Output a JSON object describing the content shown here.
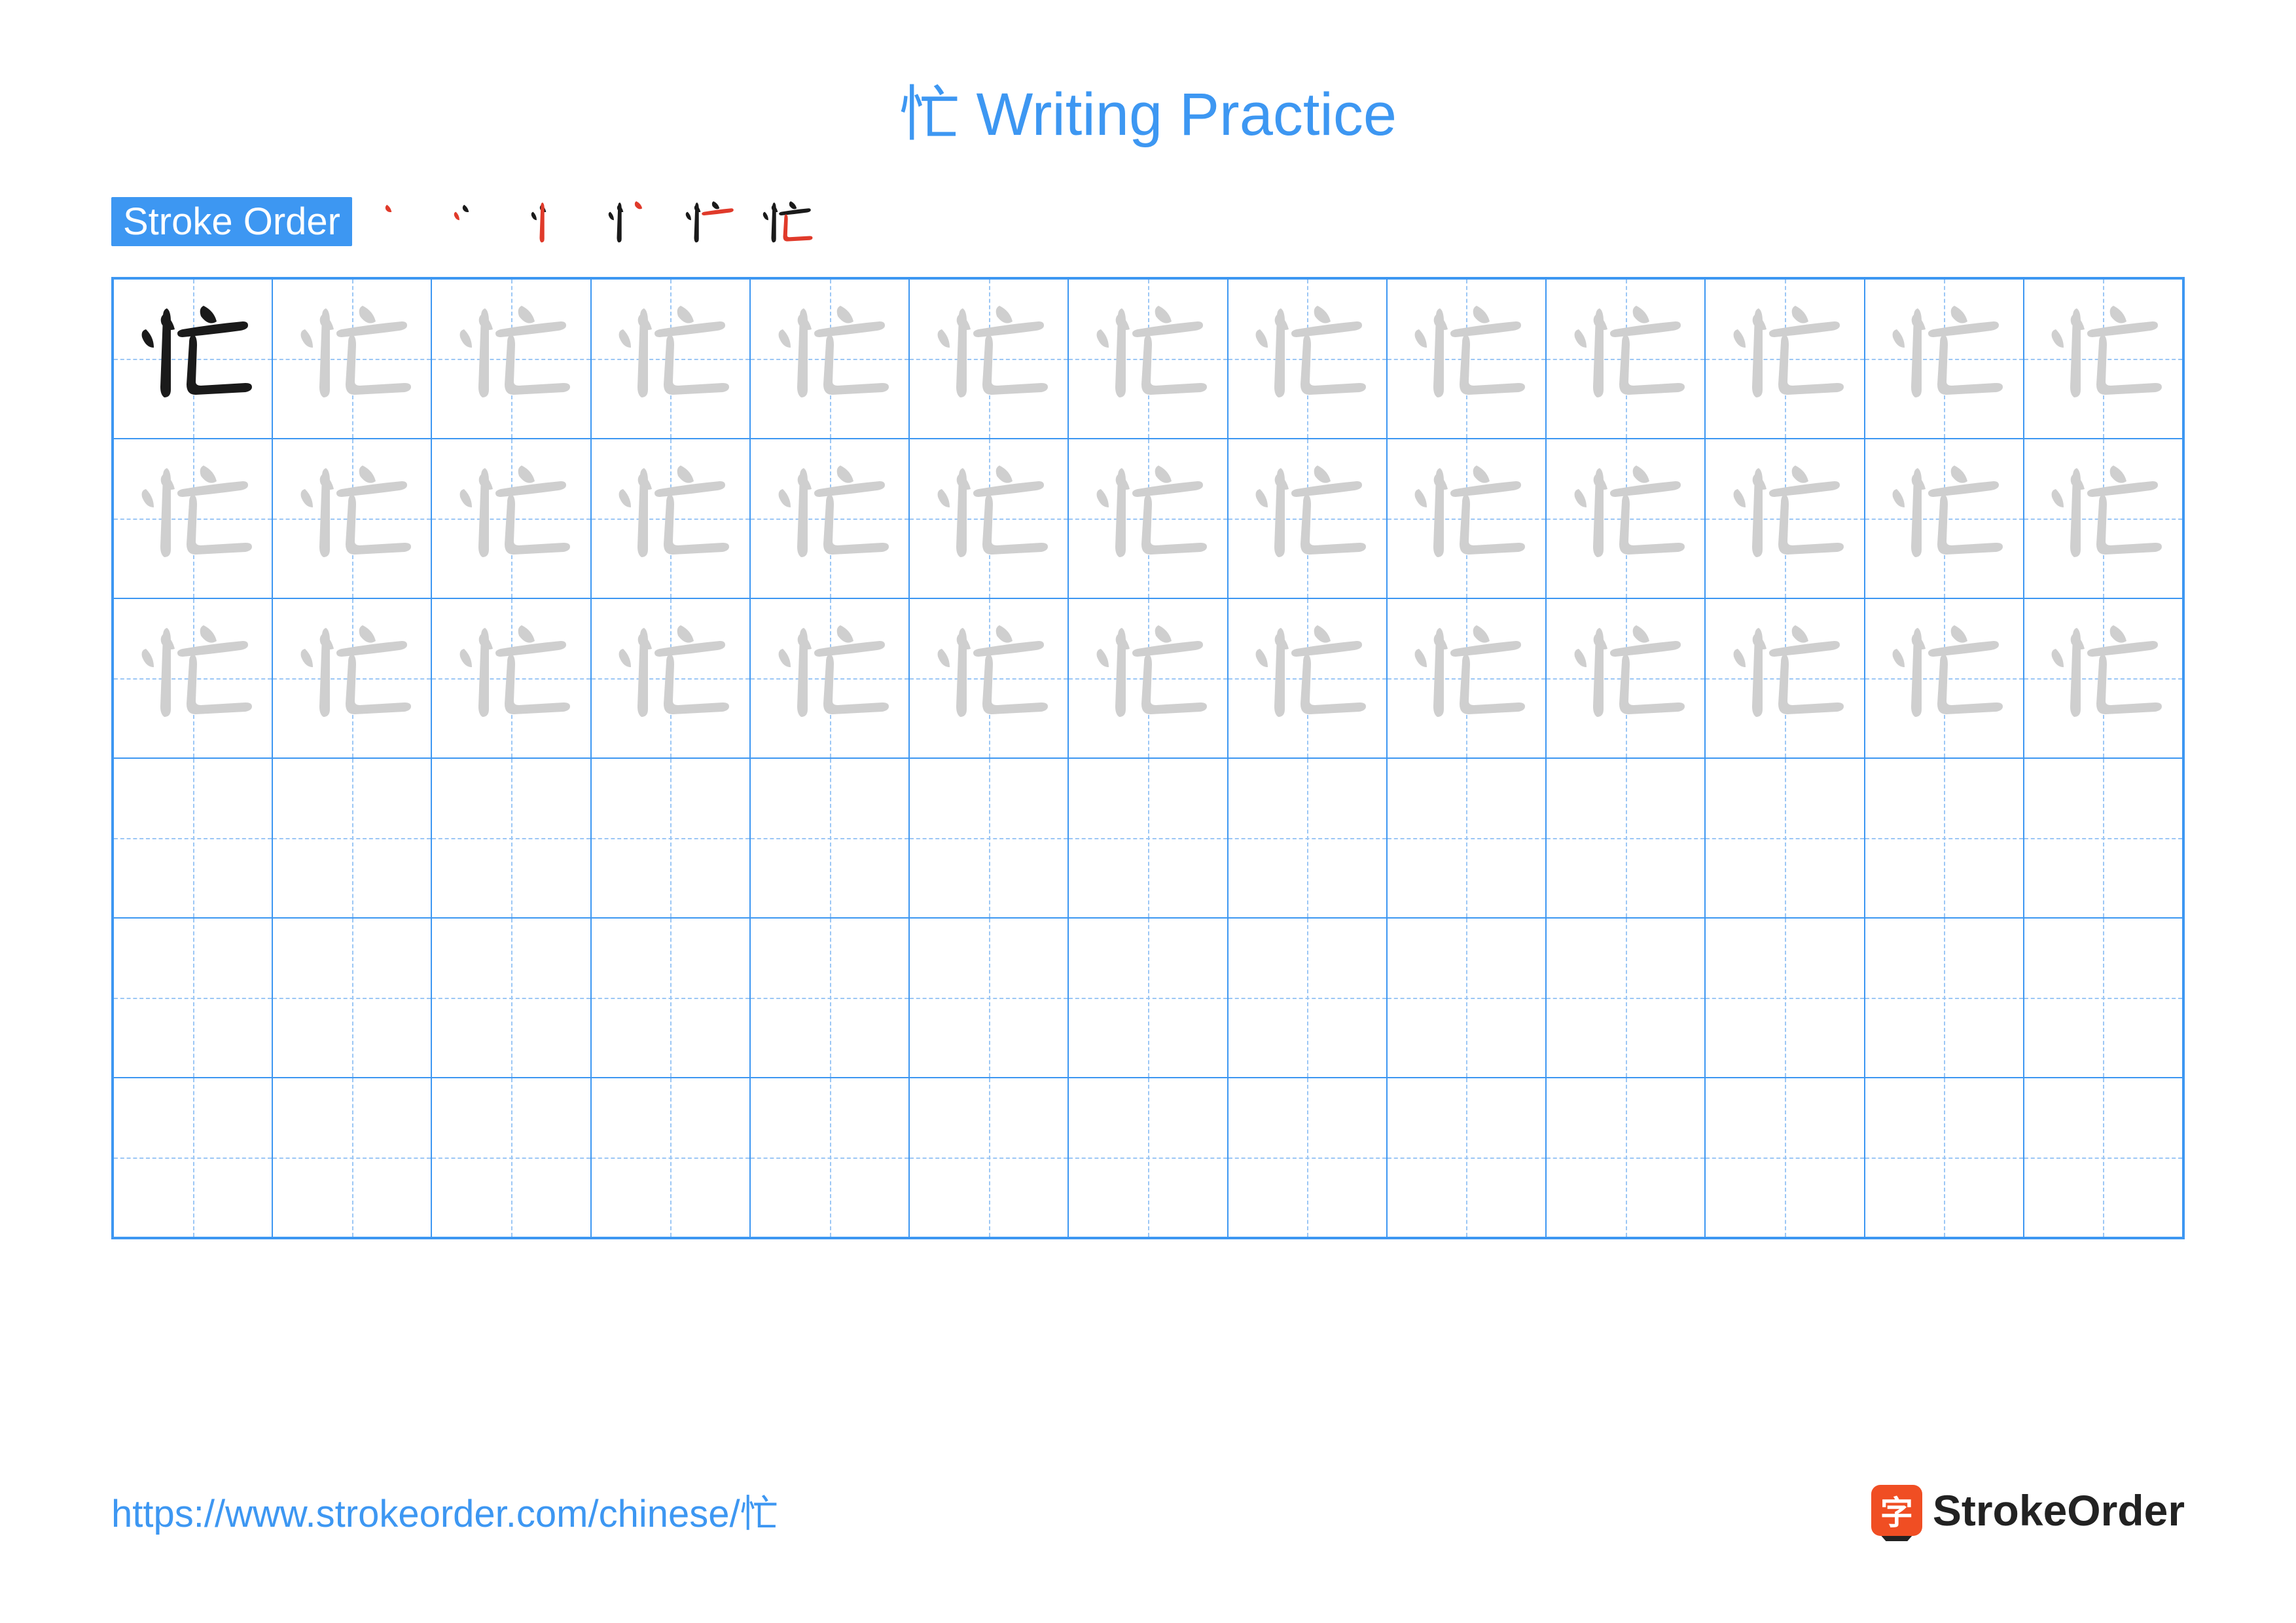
{
  "title": {
    "char": "忙",
    "text": "Writing Practice",
    "color": "#3d97f2"
  },
  "strokeOrder": {
    "label": "Stroke Order",
    "labelBg": "#3d97f2",
    "steps": 6,
    "char": "忙",
    "existingColor": "#1a1a1a",
    "newColor": "#e03a2a"
  },
  "grid": {
    "cols": 13,
    "rows": 6,
    "tracedRows": 3,
    "char": "忙",
    "solidColor": "#1a1a1a",
    "ghostColor": "#cfcfcf",
    "borderColor": "#3d97f2",
    "guideColor": "#9cc7f5"
  },
  "footer": {
    "url": "https://www.strokeorder.com/chinese/忙",
    "urlColor": "#3d97f2",
    "logoText": "StrokeOrder",
    "logoChar": "字",
    "logoBg": "#f04e23"
  }
}
